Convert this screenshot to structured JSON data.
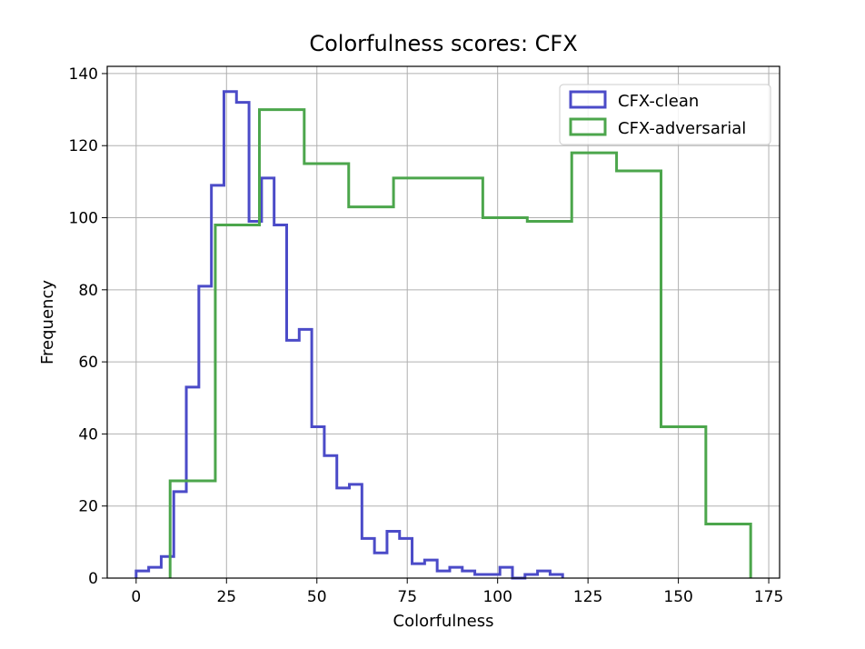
{
  "chart_data": {
    "type": "histogram",
    "title": "Colorfulness scores: CFX",
    "xlabel": "Colorfulness",
    "ylabel": "Frequency",
    "xlim": [
      -8,
      178
    ],
    "ylim": [
      0,
      142
    ],
    "xticks": [
      0,
      25,
      50,
      75,
      100,
      125,
      150,
      175
    ],
    "yticks": [
      0,
      20,
      40,
      60,
      80,
      100,
      120,
      140
    ],
    "grid": true,
    "legend_position": "top-right",
    "series": [
      {
        "name": "CFX-clean",
        "color": "#4b4bc8",
        "bin_edges": [
          0,
          3.47,
          6.94,
          10.41,
          13.88,
          17.35,
          20.82,
          24.29,
          27.76,
          31.23,
          34.7,
          38.17,
          41.64,
          45.11,
          48.58,
          52.05,
          55.52,
          58.99,
          62.46,
          65.93,
          69.4,
          72.87,
          76.34,
          79.81,
          83.28,
          86.75,
          90.22,
          93.69,
          97.16,
          100.63,
          104.1,
          107.57,
          111.04,
          114.51,
          117.98
        ],
        "counts": [
          2,
          3,
          6,
          24,
          53,
          81,
          109,
          135,
          132,
          99,
          111,
          98,
          66,
          69,
          42,
          34,
          25,
          26,
          11,
          7,
          13,
          11,
          4,
          5,
          2,
          3,
          2,
          1,
          1,
          3,
          0,
          1,
          2,
          1
        ]
      },
      {
        "name": "CFX-adversarial",
        "color": "#4ca64c",
        "bin_edges": [
          9.4,
          21.9,
          34.1,
          46.5,
          58.8,
          71.2,
          83.5,
          95.9,
          108.2,
          120.5,
          132.9,
          145.2,
          157.6,
          170.0
        ],
        "counts": [
          27,
          98,
          130,
          115,
          103,
          111,
          111,
          100,
          99,
          118,
          113,
          42,
          15
        ]
      }
    ]
  }
}
